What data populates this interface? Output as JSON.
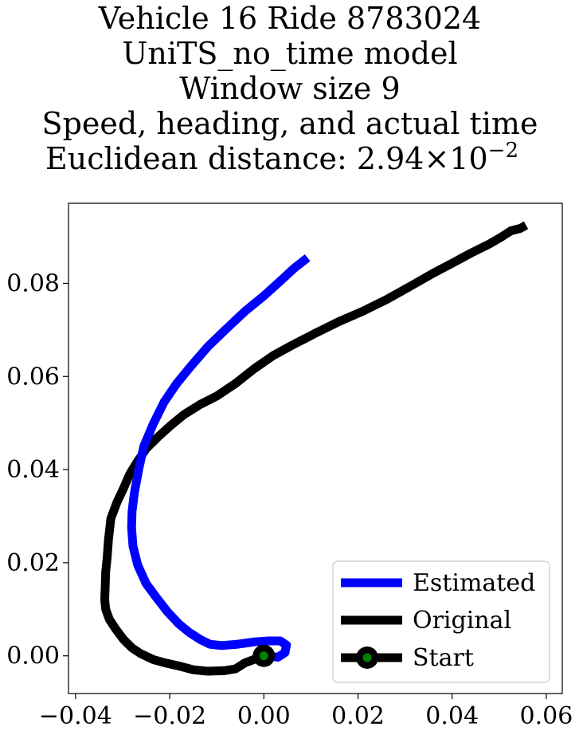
{
  "chart_data": {
    "type": "line",
    "title_lines": [
      "Vehicle 16 Ride 8783024",
      "UniTS_no_time model",
      "Window size 9",
      "Speed, heading, and actual time"
    ],
    "title_metric": {
      "prefix": "Euclidean distance: ",
      "mantissa": "2.94",
      "times": "×",
      "base": "10",
      "exponent": "−2"
    },
    "xlabel": "",
    "ylabel": "",
    "xlim": [
      -0.0415,
      0.0634
    ],
    "ylim": [
      -0.0081,
      0.0972
    ],
    "xticks": [
      -0.04,
      -0.02,
      0.0,
      0.02,
      0.04,
      0.06
    ],
    "xtick_labels": [
      "−0.04",
      "−0.02",
      "0.00",
      "0.02",
      "0.04",
      "0.06"
    ],
    "yticks": [
      0.0,
      0.02,
      0.04,
      0.06,
      0.08
    ],
    "ytick_labels": [
      "0.00",
      "0.02",
      "0.04",
      "0.06",
      "0.08"
    ],
    "grid": false,
    "legend_position": "lower-right",
    "series": [
      {
        "name": "Original",
        "color": "#000000",
        "points": [
          [
            0.0,
            0.0
          ],
          [
            -0.004,
            -0.0015
          ],
          [
            -0.006,
            -0.0028
          ],
          [
            -0.0085,
            -0.0032
          ],
          [
            -0.012,
            -0.0033
          ],
          [
            -0.015,
            -0.003
          ],
          [
            -0.018,
            -0.0022
          ],
          [
            -0.021,
            -0.0015
          ],
          [
            -0.0235,
            -0.0008
          ],
          [
            -0.0262,
            0.0005
          ],
          [
            -0.028,
            0.0017
          ],
          [
            -0.0298,
            0.0035
          ],
          [
            -0.0315,
            0.0058
          ],
          [
            -0.0328,
            0.0078
          ],
          [
            -0.0336,
            0.01
          ],
          [
            -0.0338,
            0.012
          ],
          [
            -0.0337,
            0.015
          ],
          [
            -0.0336,
            0.018
          ],
          [
            -0.0333,
            0.021
          ],
          [
            -0.033,
            0.025
          ],
          [
            -0.0325,
            0.0295
          ],
          [
            -0.0312,
            0.033
          ],
          [
            -0.0298,
            0.036
          ],
          [
            -0.0285,
            0.039
          ],
          [
            -0.027,
            0.0415
          ],
          [
            -0.025,
            0.0445
          ],
          [
            -0.0225,
            0.047
          ],
          [
            -0.02,
            0.0493
          ],
          [
            -0.017,
            0.0518
          ],
          [
            -0.0135,
            0.054
          ],
          [
            -0.01,
            0.0558
          ],
          [
            -0.006,
            0.0585
          ],
          [
            -0.002,
            0.0617
          ],
          [
            0.002,
            0.0645
          ],
          [
            0.006,
            0.0667
          ],
          [
            0.011,
            0.0693
          ],
          [
            0.016,
            0.0718
          ],
          [
            0.021,
            0.074
          ],
          [
            0.026,
            0.0765
          ],
          [
            0.031,
            0.0793
          ],
          [
            0.036,
            0.0822
          ],
          [
            0.04,
            0.0843
          ],
          [
            0.044,
            0.0865
          ],
          [
            0.048,
            0.0885
          ],
          [
            0.0505,
            0.09
          ],
          [
            0.0525,
            0.0913
          ],
          [
            0.0545,
            0.0918
          ],
          [
            0.0557,
            0.0925
          ]
        ]
      },
      {
        "name": "Estimated",
        "color": "#0000ff",
        "points": [
          [
            0.0,
            0.0
          ],
          [
            0.003,
            -0.0003
          ],
          [
            0.0045,
            0.0007
          ],
          [
            0.0048,
            0.0023
          ],
          [
            0.0035,
            0.0032
          ],
          [
            0.001,
            0.0032
          ],
          [
            -0.002,
            0.003
          ],
          [
            -0.0055,
            0.0025
          ],
          [
            -0.009,
            0.0022
          ],
          [
            -0.0115,
            0.0025
          ],
          [
            -0.0135,
            0.0035
          ],
          [
            -0.0158,
            0.005
          ],
          [
            -0.018,
            0.0068
          ],
          [
            -0.0205,
            0.0095
          ],
          [
            -0.0228,
            0.0125
          ],
          [
            -0.025,
            0.0155
          ],
          [
            -0.0268,
            0.0195
          ],
          [
            -0.0278,
            0.0235
          ],
          [
            -0.0281,
            0.0275
          ],
          [
            -0.028,
            0.031
          ],
          [
            -0.0275,
            0.035
          ],
          [
            -0.0265,
            0.0405
          ],
          [
            -0.0255,
            0.045
          ],
          [
            -0.0235,
            0.0498
          ],
          [
            -0.0212,
            0.0545
          ],
          [
            -0.0185,
            0.0585
          ],
          [
            -0.0155,
            0.0622
          ],
          [
            -0.0118,
            0.0665
          ],
          [
            -0.008,
            0.0702
          ],
          [
            -0.004,
            0.074
          ],
          [
            0.0,
            0.0773
          ],
          [
            0.0035,
            0.0805
          ],
          [
            0.0065,
            0.0833
          ],
          [
            0.0093,
            0.0855
          ]
        ]
      }
    ],
    "markers": [
      {
        "name": "Start",
        "x": 0.0,
        "y": 0.0,
        "edge_color": "#000000",
        "face_color": "#008000"
      }
    ],
    "legend": [
      {
        "label": "Estimated",
        "color": "#0000ff",
        "kind": "line"
      },
      {
        "label": "Original",
        "color": "#000000",
        "kind": "line"
      },
      {
        "label": "Start",
        "color": "#000000",
        "face_color": "#008000",
        "kind": "line-marker"
      }
    ]
  }
}
